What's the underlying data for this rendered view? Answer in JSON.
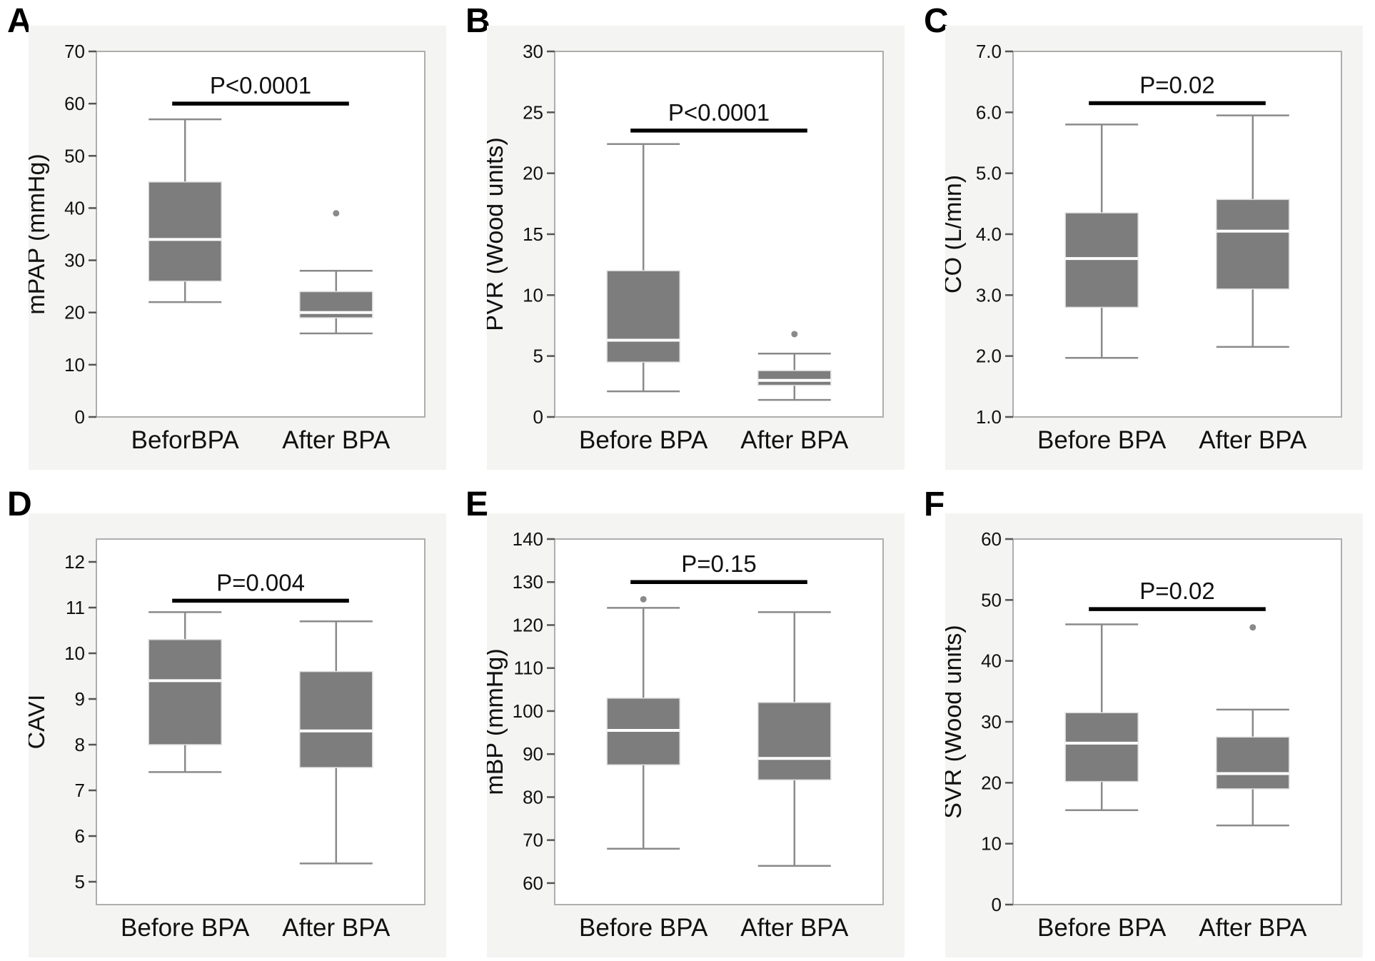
{
  "figure": {
    "background": "#ffffff",
    "card_background": "#f4f4f3",
    "frame_color": "#aeaeae",
    "plot_area_color": "#ffffff",
    "box_fill": "#7d7d7d",
    "box_stroke": "#dedede",
    "whisker_color": "#8a8a8a",
    "median_color": "#ffffff",
    "outlier_color": "#8a8a8a",
    "p_line_color": "#000000",
    "text_color": "#111111"
  },
  "chart_data": [
    {
      "panel": "A",
      "type": "box",
      "ylabel": "mPAP (mmHg)",
      "p_label": "P<0.0001",
      "p_line_y": 60,
      "ymin": 0,
      "ymax": 70,
      "tick_values": [
        0,
        10,
        20,
        30,
        40,
        50,
        60,
        70
      ],
      "tick_labels": [
        "0",
        "10",
        "20",
        "30",
        "40",
        "50",
        "60",
        "70"
      ],
      "categories": [
        "BeforBPA",
        "After BPA"
      ],
      "series": [
        {
          "name": "BeforBPA",
          "low": 22,
          "q1": 26,
          "median": 34,
          "q3": 45,
          "high": 57,
          "outliers": []
        },
        {
          "name": "After BPA",
          "low": 16,
          "q1": 19,
          "median": 20,
          "q3": 24,
          "high": 28,
          "outliers": [
            39
          ]
        }
      ]
    },
    {
      "panel": "B",
      "type": "box",
      "ylabel": "PVR (Wood units)",
      "p_label": "P<0.0001",
      "p_line_y": 23.5,
      "ymin": 0,
      "ymax": 30,
      "tick_values": [
        0,
        5,
        10,
        15,
        20,
        25,
        30
      ],
      "tick_labels": [
        "0",
        "5",
        "10",
        "15",
        "20",
        "25",
        "30"
      ],
      "categories": [
        "Before BPA",
        "After BPA"
      ],
      "series": [
        {
          "name": "Before BPA",
          "low": 2.1,
          "q1": 4.5,
          "median": 6.3,
          "q3": 12,
          "high": 22.4,
          "outliers": []
        },
        {
          "name": "After BPA",
          "low": 1.4,
          "q1": 2.6,
          "median": 3.0,
          "q3": 3.8,
          "high": 5.2,
          "outliers": [
            6.8
          ]
        }
      ]
    },
    {
      "panel": "C",
      "type": "box",
      "ylabel": "CO (L/min)",
      "p_label": "P=0.02",
      "p_line_y": 6.15,
      "ymin": 1.0,
      "ymax": 7.0,
      "tick_values": [
        1,
        2,
        3,
        4,
        5,
        6,
        7
      ],
      "tick_labels": [
        "1.0",
        "2.0",
        "3.0",
        "4.0",
        "5.0",
        "6.0",
        "7.0"
      ],
      "categories": [
        "Before BPA",
        "After BPA"
      ],
      "series": [
        {
          "name": "Before BPA",
          "low": 1.97,
          "q1": 2.8,
          "median": 3.6,
          "q3": 4.35,
          "high": 5.8,
          "outliers": []
        },
        {
          "name": "After BPA",
          "low": 2.15,
          "q1": 3.1,
          "median": 4.05,
          "q3": 4.57,
          "high": 5.95,
          "outliers": []
        }
      ]
    },
    {
      "panel": "D",
      "type": "box",
      "ylabel": "CAVI",
      "p_label": "P=0.004",
      "p_line_y": 11.15,
      "ymin": 4.5,
      "ymax": 12.5,
      "tick_values": [
        5,
        6,
        7,
        8,
        9,
        10,
        11,
        12
      ],
      "tick_labels": [
        "5",
        "6",
        "7",
        "8",
        "9",
        "10",
        "11",
        "12"
      ],
      "categories": [
        "Before BPA",
        "After BPA"
      ],
      "series": [
        {
          "name": "Before BPA",
          "low": 7.4,
          "q1": 8.0,
          "median": 9.4,
          "q3": 10.3,
          "high": 10.9,
          "outliers": []
        },
        {
          "name": "After BPA",
          "low": 5.4,
          "q1": 7.5,
          "median": 8.3,
          "q3": 9.6,
          "high": 10.7,
          "outliers": []
        }
      ]
    },
    {
      "panel": "E",
      "type": "box",
      "ylabel": "mBP (mmHg)",
      "p_label": "P=0.15",
      "p_line_y": 130,
      "ymin": 55,
      "ymax": 140,
      "tick_values": [
        60,
        70,
        80,
        90,
        100,
        110,
        120,
        130,
        140
      ],
      "tick_labels": [
        "60",
        "70",
        "80",
        "90",
        "100",
        "110",
        "120",
        "130",
        "140"
      ],
      "categories": [
        "Before BPA",
        "After BPA"
      ],
      "series": [
        {
          "name": "Before BPA",
          "low": 68,
          "q1": 87.5,
          "median": 95.5,
          "q3": 103,
          "high": 124,
          "outliers": [
            126
          ]
        },
        {
          "name": "After BPA",
          "low": 64,
          "q1": 84,
          "median": 89,
          "q3": 102,
          "high": 123,
          "outliers": []
        }
      ]
    },
    {
      "panel": "F",
      "type": "box",
      "ylabel": "SVR (Wood units)",
      "p_label": "P=0.02",
      "p_line_y": 48.5,
      "ymin": 0,
      "ymax": 60,
      "tick_values": [
        0,
        10,
        20,
        30,
        40,
        50,
        60
      ],
      "tick_labels": [
        "0",
        "10",
        "20",
        "30",
        "40",
        "50",
        "60"
      ],
      "categories": [
        "Before BPA",
        "After BPA"
      ],
      "series": [
        {
          "name": "Before BPA",
          "low": 15.5,
          "q1": 20.2,
          "median": 26.5,
          "q3": 31.5,
          "high": 46,
          "outliers": []
        },
        {
          "name": "After BPA",
          "low": 13,
          "q1": 19,
          "median": 21.5,
          "q3": 27.5,
          "high": 32,
          "outliers": [
            45.5
          ]
        }
      ]
    }
  ]
}
